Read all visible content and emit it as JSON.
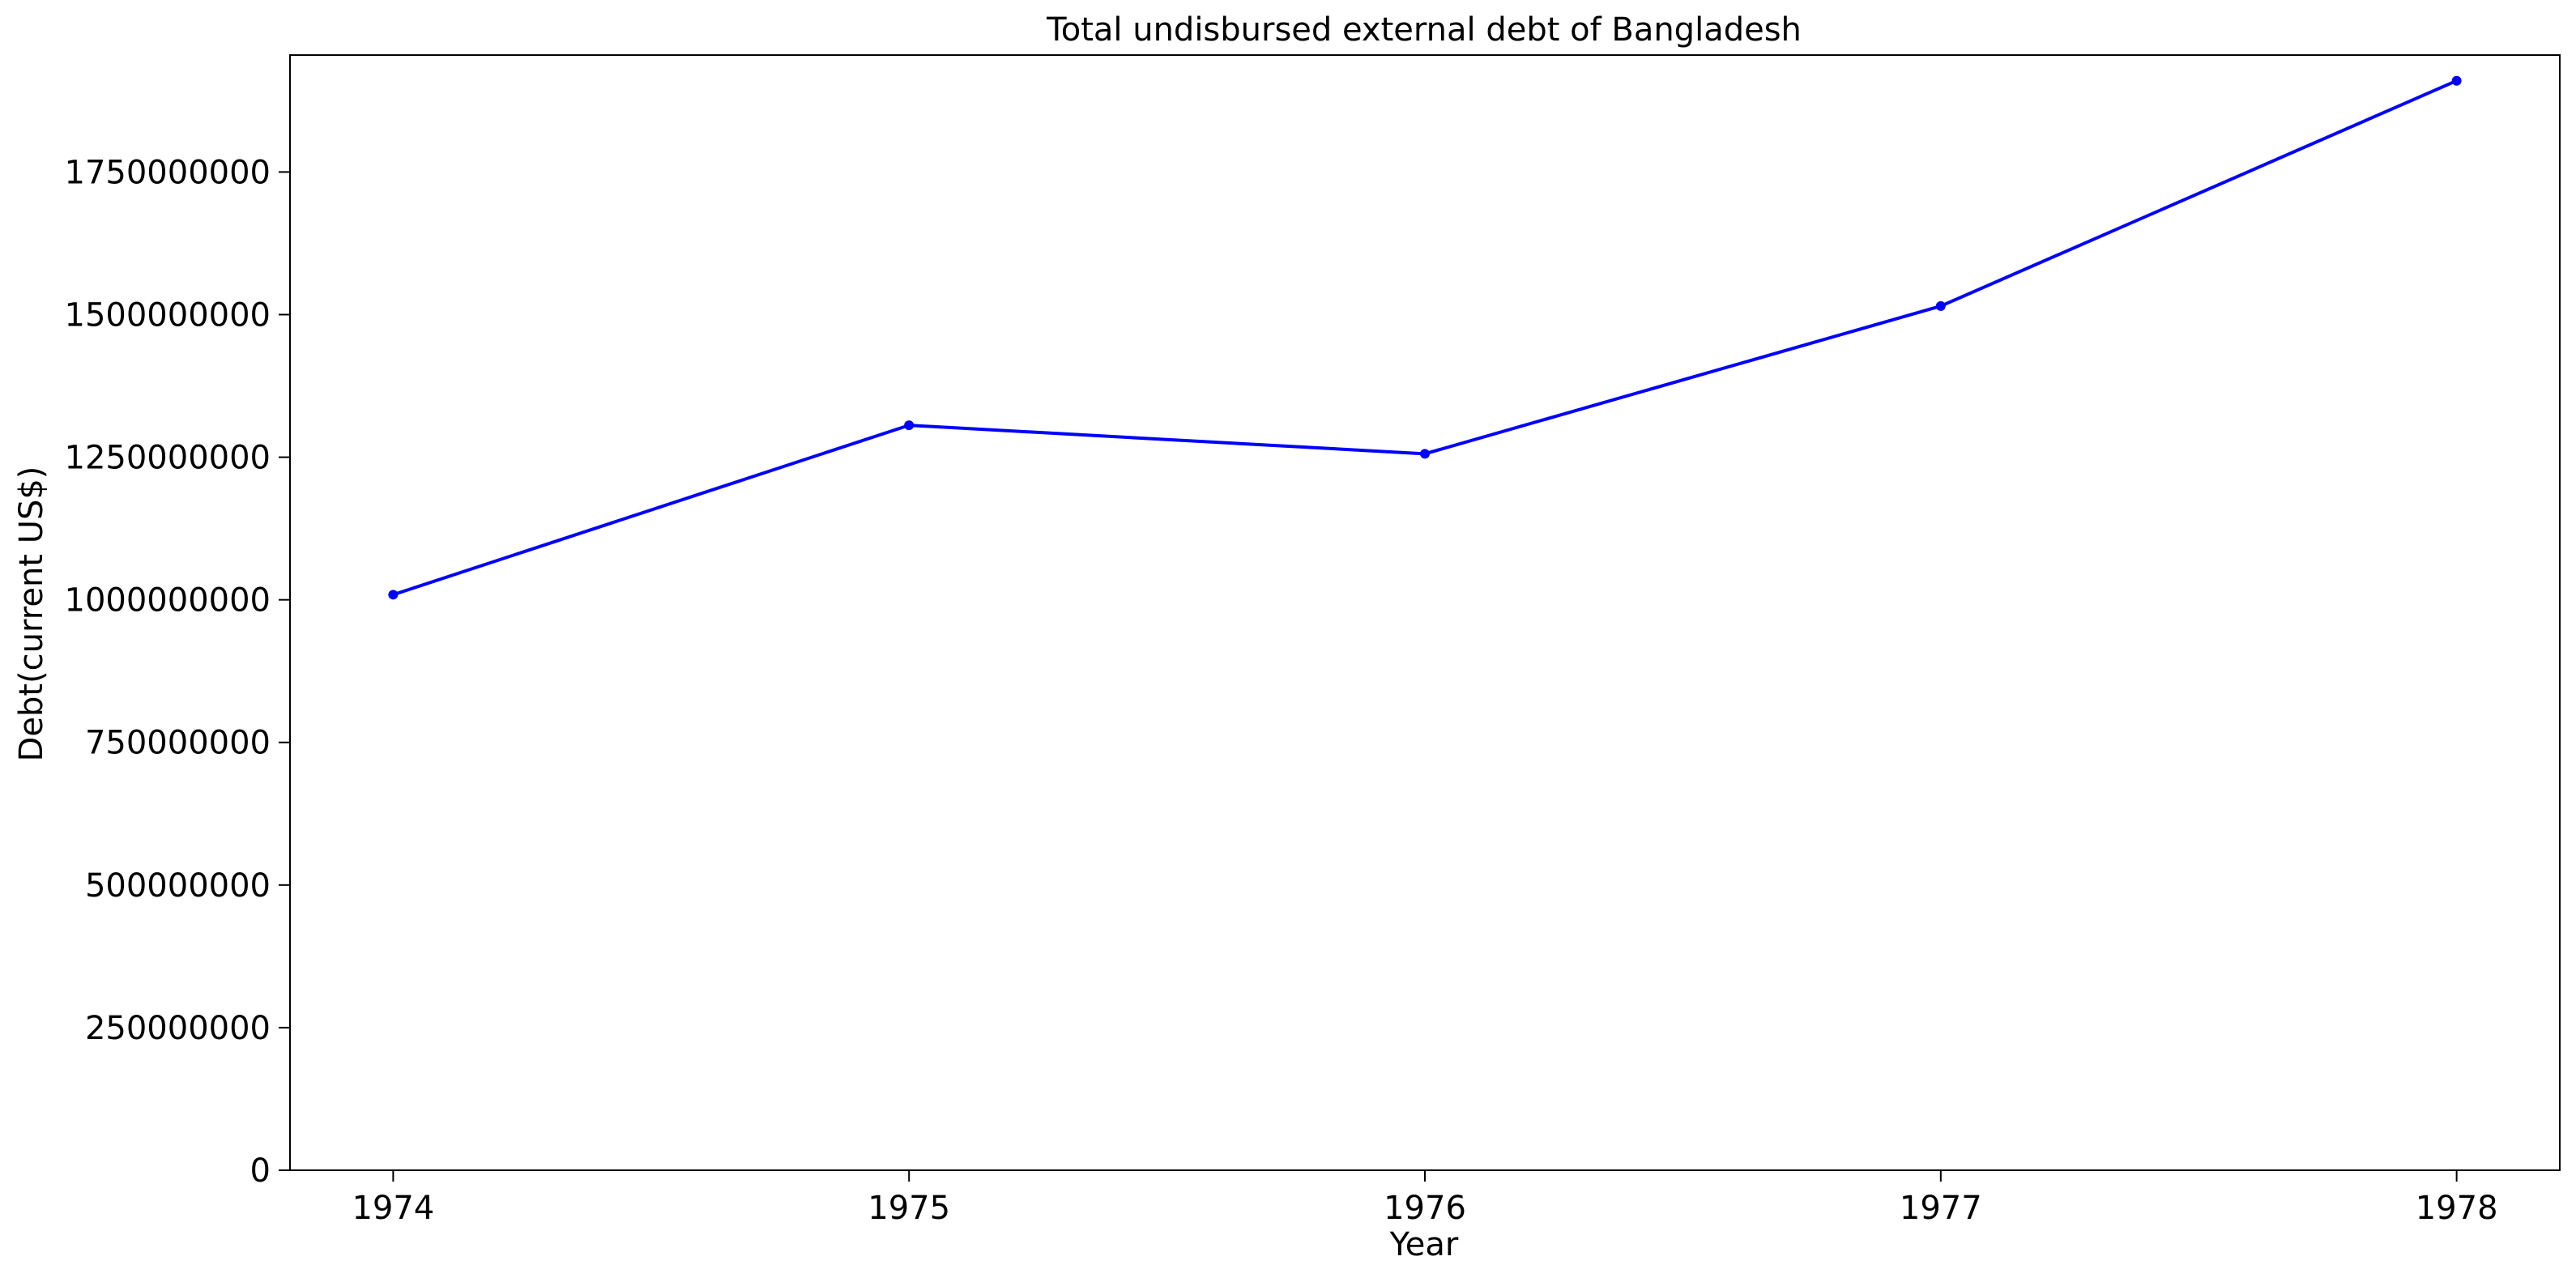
{
  "chart_data": {
    "type": "line",
    "title": "Total undisbursed external debt of Bangladesh",
    "xlabel": "Year",
    "ylabel": "Debt(current US$)",
    "x": [
      1974,
      1975,
      1976,
      1977,
      1978
    ],
    "x_tick_labels": [
      "1974",
      "1975",
      "1976",
      "1977",
      "1978"
    ],
    "series": [
      {
        "values": [
          1009000000,
          1306000000,
          1256000000,
          1515000000,
          1910000000
        ],
        "color": "#0000ff",
        "marker": "circle"
      }
    ],
    "xlim": [
      1973.8,
      1978.2
    ],
    "ylim": [
      0,
      1955000000
    ],
    "y_ticks": [
      0,
      250000000,
      500000000,
      750000000,
      1000000000,
      1250000000,
      1500000000,
      1750000000
    ],
    "y_tick_labels": [
      "0",
      "250000000",
      "500000000",
      "750000000",
      "1000000000",
      "1250000000",
      "1500000000",
      "1750000000"
    ],
    "grid": false,
    "legend": "none"
  }
}
